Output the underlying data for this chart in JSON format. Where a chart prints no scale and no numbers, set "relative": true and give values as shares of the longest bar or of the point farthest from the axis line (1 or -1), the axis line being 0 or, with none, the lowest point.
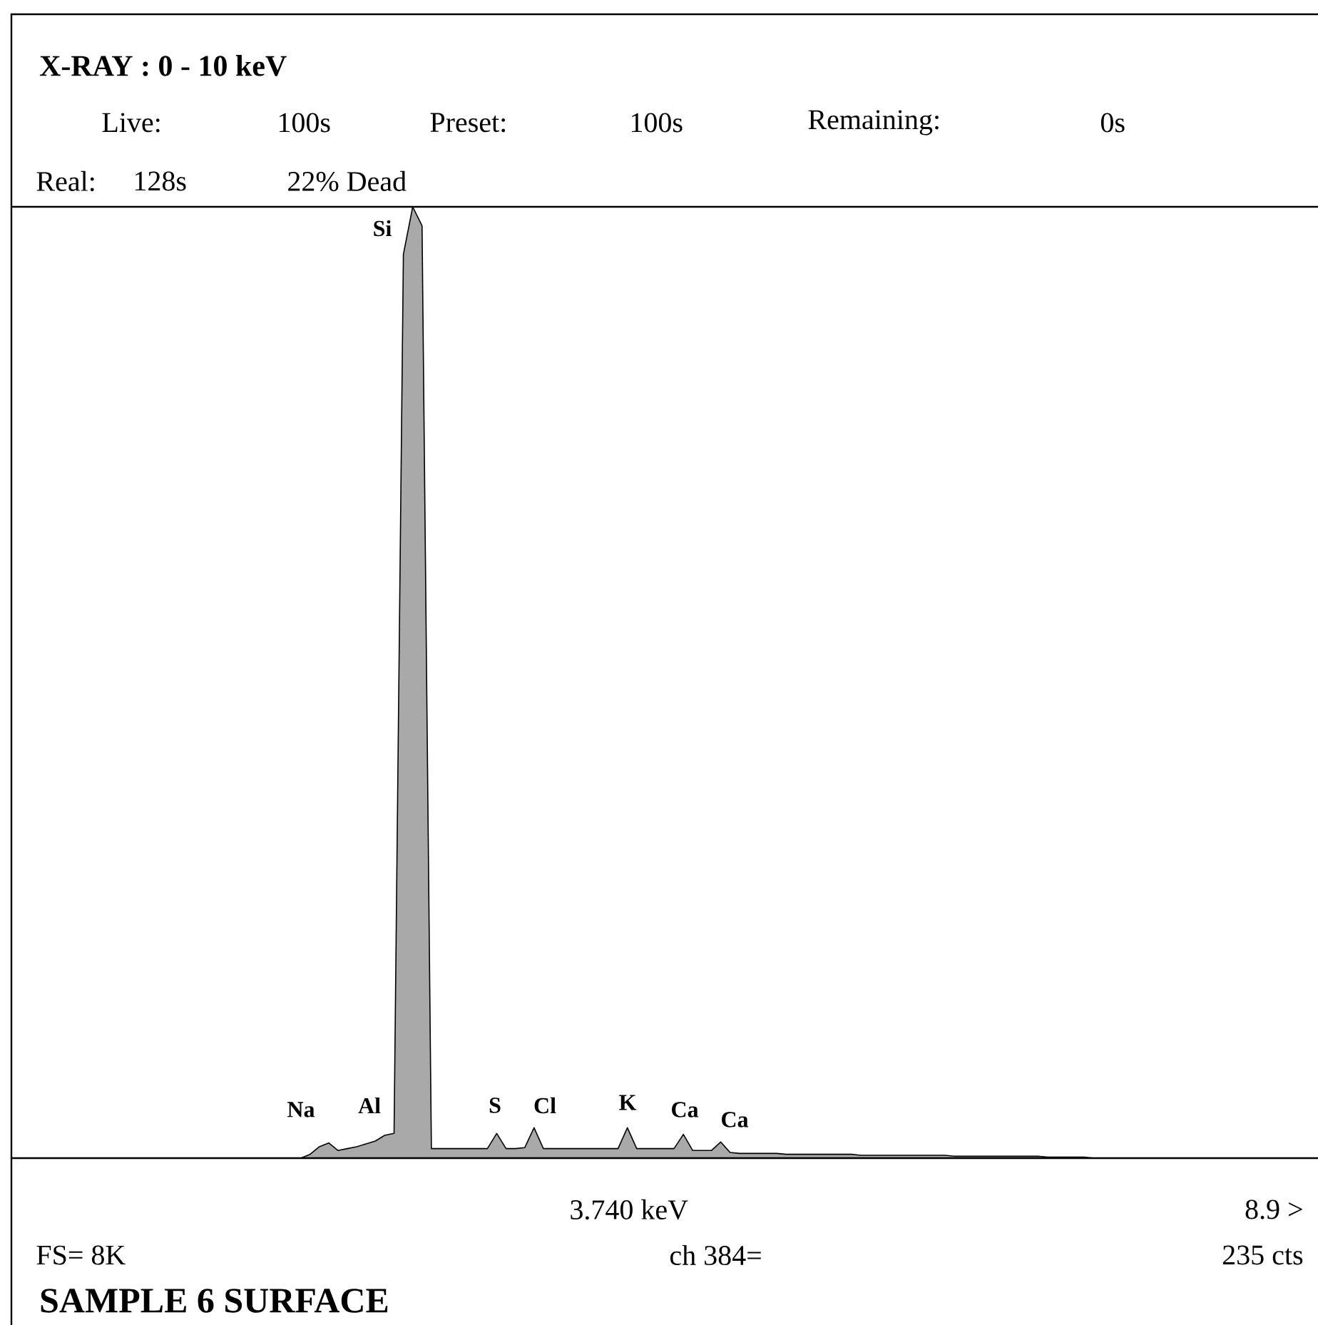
{
  "chart_data": {
    "type": "area",
    "relative": true,
    "title": "X-RAY :  0 - 10 keV",
    "subtitle": "SAMPLE 6 SURFACE",
    "color": "#a9a9a9",
    "categories": [
      null,
      null,
      null,
      null,
      null,
      null,
      null,
      null,
      null,
      null,
      null,
      null,
      null,
      null,
      null,
      null,
      null,
      null,
      null,
      null,
      null,
      null,
      null,
      null,
      null,
      null,
      null,
      null,
      null,
      null,
      null,
      null,
      null,
      null,
      null,
      null,
      null,
      null,
      null,
      null,
      null,
      null,
      null,
      null,
      null,
      null,
      null,
      null,
      null,
      null,
      null,
      null,
      null,
      null,
      null,
      null,
      null,
      null,
      null,
      null,
      null,
      null,
      null,
      null,
      null,
      null,
      null,
      null,
      null,
      null,
      null,
      null,
      null,
      null,
      null,
      null,
      null,
      null,
      null,
      null,
      null,
      null,
      null,
      null,
      null,
      null,
      null,
      null,
      null,
      null,
      null,
      null,
      null,
      null,
      null,
      null,
      null,
      null,
      null,
      null,
      null,
      null,
      null,
      null,
      null,
      null,
      null,
      null,
      null,
      null,
      null,
      null,
      null,
      null,
      null,
      null,
      null,
      null,
      null,
      null,
      null,
      null,
      null,
      null,
      null,
      null,
      null,
      null,
      null,
      null,
      null,
      null,
      null,
      null,
      null,
      null,
      null,
      null,
      null,
      null,
      null
    ],
    "values": [
      0,
      0,
      0,
      0,
      0,
      0,
      0,
      0,
      0,
      0,
      0,
      0,
      0,
      0,
      0,
      0,
      0,
      0,
      0,
      0,
      0,
      0,
      0,
      0,
      0,
      0,
      0,
      0,
      0,
      0,
      0,
      0,
      0.004,
      0.012,
      0.016,
      0.008,
      0.01,
      0.012,
      0.015,
      0.018,
      0.024,
      0.026,
      0.95,
      1,
      0.98,
      0.01,
      0.01,
      0.01,
      0.01,
      0.01,
      0.01,
      0.01,
      0.026,
      0.01,
      0.01,
      0.011,
      0.032,
      0.01,
      0.01,
      0.01,
      0.01,
      0.01,
      0.01,
      0.01,
      0.01,
      0.01,
      0.032,
      0.01,
      0.01,
      0.01,
      0.01,
      0.01,
      0.025,
      0.008,
      0.008,
      0.008,
      0.017,
      0.006,
      0.005,
      0.005,
      0.005,
      0.005,
      0.005,
      0.004,
      0.004,
      0.004,
      0.004,
      0.004,
      0.004,
      0.004,
      0.004,
      0.003,
      0.003,
      0.003,
      0.003,
      0.003,
      0.003,
      0.003,
      0.003,
      0.003,
      0.003,
      0.002,
      0.002,
      0.002,
      0.002,
      0.002,
      0.002,
      0.002,
      0.002,
      0.002,
      0.002,
      0.001,
      0.001,
      0.001,
      0.001,
      0.001,
      0,
      0,
      0,
      0,
      0,
      0,
      0,
      0,
      0,
      0,
      0,
      0,
      0,
      0,
      0,
      0,
      0,
      0,
      0,
      0,
      0,
      0,
      0,
      0,
      0
    ],
    "annotations": [
      "Live:",
      "100s",
      "Preset:",
      "100s",
      "Remaining:",
      "0s",
      "Real:",
      "128s",
      "22% Dead",
      "Si",
      "Na",
      "Al",
      "S",
      "Cl",
      "K",
      "Ca",
      "Ca",
      "3.740  keV",
      "8.9 >",
      "FS=  8K",
      "ch  384=",
      "235  cts"
    ]
  }
}
